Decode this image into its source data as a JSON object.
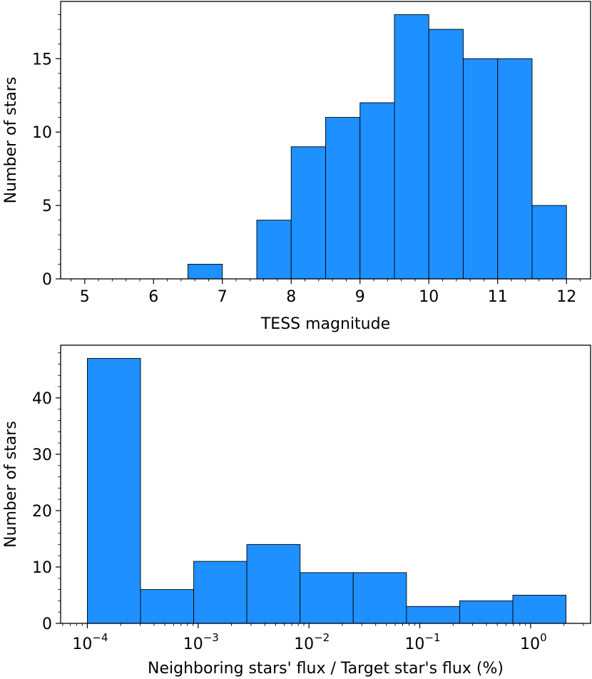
{
  "chart_data": [
    {
      "type": "bar",
      "subtype": "histogram",
      "xlabel": "TESS magnitude",
      "ylabel": "Number of stars",
      "xlim": [
        4.65,
        12.35
      ],
      "ylim": [
        0,
        18.9
      ],
      "xticks": [
        5,
        6,
        7,
        8,
        9,
        10,
        11,
        12
      ],
      "yticks": [
        0,
        5,
        10,
        15
      ],
      "minor_xticks": true,
      "minor_yticks": true,
      "grid": false,
      "bar_color": "#1e90ff",
      "bins": [
        {
          "x0": 6.5,
          "x1": 7.0,
          "value": 1
        },
        {
          "x0": 7.5,
          "x1": 8.0,
          "value": 4
        },
        {
          "x0": 8.0,
          "x1": 8.5,
          "value": 9
        },
        {
          "x0": 8.5,
          "x1": 9.0,
          "value": 11
        },
        {
          "x0": 9.0,
          "x1": 9.5,
          "value": 12
        },
        {
          "x0": 9.5,
          "x1": 10.0,
          "value": 18
        },
        {
          "x0": 10.0,
          "x1": 10.5,
          "value": 17
        },
        {
          "x0": 10.5,
          "x1": 11.0,
          "value": 15
        },
        {
          "x0": 11.0,
          "x1": 11.5,
          "value": 15
        },
        {
          "x0": 11.5,
          "x1": 12.0,
          "value": 5
        }
      ]
    },
    {
      "type": "bar",
      "subtype": "histogram",
      "xlabel": "Neighboring stars' flux / Target star's flux (%)",
      "ylabel": "Number of stars",
      "xscale": "log",
      "xlim": [
        5.74e-05,
        3.48
      ],
      "ylim": [
        0,
        49.35
      ],
      "xticks": [
        {
          "value": 0.0001,
          "base": "10",
          "exp": "−4"
        },
        {
          "value": 0.001,
          "base": "10",
          "exp": "−3"
        },
        {
          "value": 0.01,
          "base": "10",
          "exp": "−2"
        },
        {
          "value": 0.1,
          "base": "10",
          "exp": "−1"
        },
        {
          "value": 1,
          "base": "10",
          "exp": "0"
        }
      ],
      "yticks": [
        0,
        10,
        20,
        30,
        40
      ],
      "minor_xticks": true,
      "minor_yticks": true,
      "grid": false,
      "bar_color": "#1e90ff",
      "bins": [
        {
          "x0": 0.0001,
          "x1": 0.000302,
          "value": 47
        },
        {
          "x0": 0.000302,
          "x1": 0.000912,
          "value": 6
        },
        {
          "x0": 0.000912,
          "x1": 0.00275,
          "value": 11
        },
        {
          "x0": 0.00275,
          "x1": 0.00832,
          "value": 14
        },
        {
          "x0": 0.00832,
          "x1": 0.0251,
          "value": 9
        },
        {
          "x0": 0.0251,
          "x1": 0.0759,
          "value": 9
        },
        {
          "x0": 0.0759,
          "x1": 0.229,
          "value": 3
        },
        {
          "x0": 0.229,
          "x1": 0.692,
          "value": 4
        },
        {
          "x0": 0.692,
          "x1": 2.09,
          "value": 5
        }
      ]
    }
  ]
}
